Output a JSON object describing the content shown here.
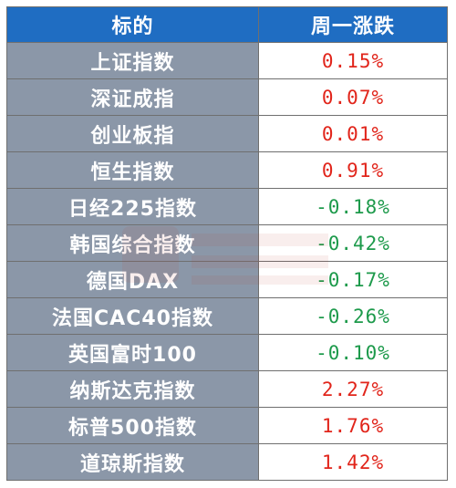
{
  "table": {
    "headers": [
      "标的",
      "周一涨跌"
    ],
    "rows": [
      {
        "name": "上证指数",
        "change": "0.15%",
        "direction": "up"
      },
      {
        "name": "深证成指",
        "change": "0.07%",
        "direction": "up"
      },
      {
        "name": "创业板指",
        "change": "0.01%",
        "direction": "up"
      },
      {
        "name": "恒生指数",
        "change": "0.91%",
        "direction": "up"
      },
      {
        "name": "日经225指数",
        "change": "-0.18%",
        "direction": "down"
      },
      {
        "name": "韩国综合指数",
        "change": "-0.42%",
        "direction": "down"
      },
      {
        "name": "德国DAX",
        "change": "-0.17%",
        "direction": "down"
      },
      {
        "name": "法国CAC40指数",
        "change": "-0.26%",
        "direction": "down"
      },
      {
        "name": "英国富时100",
        "change": "-0.10%",
        "direction": "down"
      },
      {
        "name": "纳斯达克指数",
        "change": "2.27%",
        "direction": "up"
      },
      {
        "name": "标普500指数",
        "change": "1.76%",
        "direction": "up"
      },
      {
        "name": "道琼斯指数",
        "change": "1.42%",
        "direction": "up"
      }
    ]
  },
  "colors": {
    "header_bg": "#1f6dc2",
    "name_bg": "#8b97a8",
    "up": "#e1251b",
    "down": "#1d9a4b"
  },
  "watermark": {
    "icon": "watermark-logo"
  }
}
